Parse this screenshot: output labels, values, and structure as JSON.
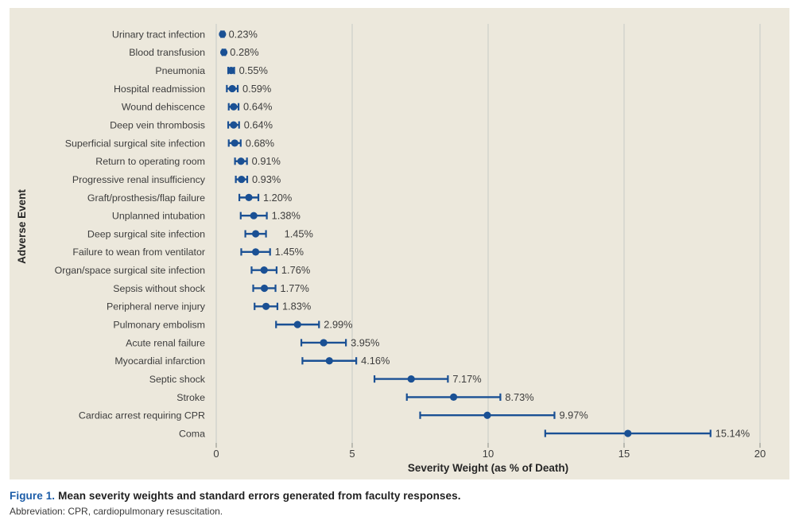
{
  "colors": {
    "panel_background": "#ece8dc",
    "grid_line": "#d9d9d1",
    "tick_mark": "#aeaea6",
    "marker_blue": "#1a5094",
    "label_text": "#3d3d3d",
    "axis_title_text": "#262626",
    "figure_label_blue": "#1b5ca8"
  },
  "chart_data": {
    "type": "scatter",
    "subtype": "horizontal-dot-plot-with-error-bars",
    "title": "",
    "xlabel": "Severity Weight (as % of Death)",
    "ylabel": "Adverse Event",
    "xlim": [
      0,
      20
    ],
    "xticks": [
      "0",
      "5",
      "10",
      "15",
      "20"
    ],
    "xtick_values": [
      0,
      5,
      10,
      15,
      20
    ],
    "grid": "vertical-only",
    "legend": "none",
    "rows": [
      {
        "category": "Urinary tract infection",
        "mean": 0.23,
        "se": 0.05,
        "label": "0.23%"
      },
      {
        "category": "Blood transfusion",
        "mean": 0.28,
        "se": 0.05,
        "label": "0.28%"
      },
      {
        "category": "Pneumonia",
        "mean": 0.55,
        "se": 0.11,
        "label": "0.55%"
      },
      {
        "category": "Hospital readmission",
        "mean": 0.59,
        "se": 0.2,
        "label": "0.59%"
      },
      {
        "category": "Wound dehiscence",
        "mean": 0.64,
        "se": 0.18,
        "label": "0.64%"
      },
      {
        "category": "Deep vein thrombosis",
        "mean": 0.64,
        "se": 0.2,
        "label": "0.64%"
      },
      {
        "category": "Superficial surgical site infection",
        "mean": 0.68,
        "se": 0.22,
        "label": "0.68%"
      },
      {
        "category": "Return to operating room",
        "mean": 0.91,
        "se": 0.22,
        "label": "0.91%"
      },
      {
        "category": "Progressive renal insufficiency",
        "mean": 0.93,
        "se": 0.21,
        "label": "0.93%"
      },
      {
        "category": "Graft/prosthesis/flap failure",
        "mean": 1.2,
        "se": 0.35,
        "label": "1.20%"
      },
      {
        "category": "Unplanned intubation",
        "mean": 1.38,
        "se": 0.48,
        "label": "1.38%"
      },
      {
        "category": "Deep surgical site infection",
        "mean": 1.45,
        "se": 0.38,
        "label": "1.45%",
        "label_pad": 17
      },
      {
        "category": "Failure to wean from ventilator",
        "mean": 1.45,
        "se": 0.53,
        "label": "1.45%"
      },
      {
        "category": "Organ/space surgical site infection",
        "mean": 1.76,
        "se": 0.46,
        "label": "1.76%"
      },
      {
        "category": "Sepsis without shock",
        "mean": 1.77,
        "se": 0.41,
        "label": "1.77%"
      },
      {
        "category": "Peripheral nerve injury",
        "mean": 1.83,
        "se": 0.42,
        "label": "1.83%"
      },
      {
        "category": "Pulmonary embolism",
        "mean": 2.99,
        "se": 0.79,
        "label": "2.99%"
      },
      {
        "category": "Acute renal failure",
        "mean": 3.95,
        "se": 0.82,
        "label": "3.95%"
      },
      {
        "category": "Myocardial infarction",
        "mean": 4.16,
        "se": 0.99,
        "label": "4.16%"
      },
      {
        "category": "Septic shock",
        "mean": 7.17,
        "se": 1.35,
        "label": "7.17%"
      },
      {
        "category": "Stroke",
        "mean": 8.73,
        "se": 1.72,
        "label": "8.73%"
      },
      {
        "category": "Cardiac arrest requiring CPR",
        "mean": 9.97,
        "se": 2.47,
        "label": "9.97%"
      },
      {
        "category": "Coma",
        "mean": 15.14,
        "se": 3.04,
        "label": "15.14%"
      }
    ]
  },
  "caption": {
    "figure_label": "Figure 1.",
    "text": "Mean severity weights and standard errors generated from faculty responses.",
    "abbreviation": "Abbreviation: CPR, cardiopulmonary resuscitation."
  }
}
